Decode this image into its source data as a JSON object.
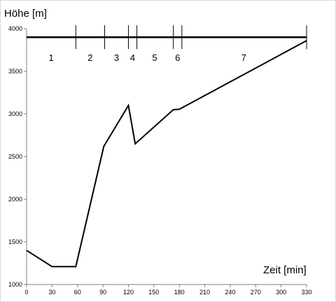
{
  "chart_data": {
    "type": "line",
    "title": "",
    "xlabel": "Zeit [min]",
    "ylabel": "Höhe [m]",
    "xlim": [
      0,
      330
    ],
    "ylim": [
      1000,
      4000
    ],
    "x_ticks": [
      0,
      30,
      60,
      90,
      120,
      150,
      180,
      210,
      240,
      270,
      300,
      330
    ],
    "y_ticks": [
      1000,
      1500,
      2000,
      2500,
      3000,
      3500,
      4000
    ],
    "grid": false,
    "legend": "none",
    "series": [
      {
        "x": [
          0,
          30,
          58,
          91,
          120,
          128,
          173,
          180,
          330
        ],
        "y": [
          1400,
          1210,
          1210,
          2620,
          3100,
          2650,
          3050,
          3055,
          3860
        ]
      }
    ],
    "reference_line": {
      "y": 3900
    },
    "segment_boundaries": [
      58,
      92,
      120,
      130,
      173,
      183,
      330
    ],
    "segments": [
      {
        "label": "1",
        "x": 29
      },
      {
        "label": "2",
        "x": 75
      },
      {
        "label": "3",
        "x": 106
      },
      {
        "label": "4",
        "x": 125
      },
      {
        "label": "5",
        "x": 151
      },
      {
        "label": "6",
        "x": 178
      },
      {
        "label": "7",
        "x": 256
      }
    ],
    "colors": {
      "line": "#000000",
      "axis": "#7f7f7f"
    }
  }
}
